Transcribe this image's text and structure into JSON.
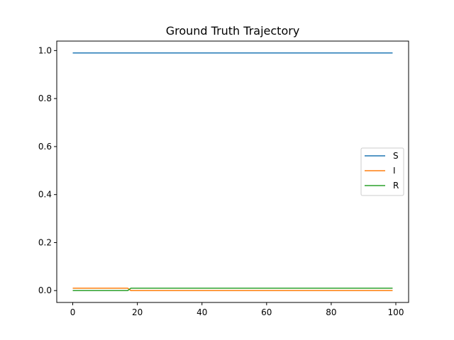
{
  "chart_data": {
    "type": "line",
    "title": "Ground Truth Trajectory",
    "xlabel": "",
    "ylabel": "",
    "xlim": [
      -4.95,
      103.95
    ],
    "ylim": [
      -0.0495,
      1.0395
    ],
    "xticks": [
      0,
      20,
      40,
      60,
      80,
      100
    ],
    "xtick_labels": [
      "0",
      "20",
      "40",
      "60",
      "80",
      "100"
    ],
    "yticks": [
      0.0,
      0.2,
      0.4,
      0.6,
      0.8,
      1.0
    ],
    "ytick_labels": [
      "0.0",
      "0.2",
      "0.4",
      "0.6",
      "0.8",
      "1.0"
    ],
    "grid": false,
    "legend_position": "center-right",
    "series": [
      {
        "name": "S",
        "color": "#1f77b4",
        "x": [
          0,
          99
        ],
        "y": [
          0.99,
          0.99
        ]
      },
      {
        "name": "I",
        "color": "#ff7f0e",
        "x": [
          0,
          17,
          18,
          99
        ],
        "y": [
          0.01,
          0.01,
          0.0,
          0.0
        ]
      },
      {
        "name": "R",
        "color": "#2ca02c",
        "x": [
          0,
          17,
          18,
          99
        ],
        "y": [
          0.0,
          0.0,
          0.01,
          0.01
        ]
      }
    ]
  }
}
